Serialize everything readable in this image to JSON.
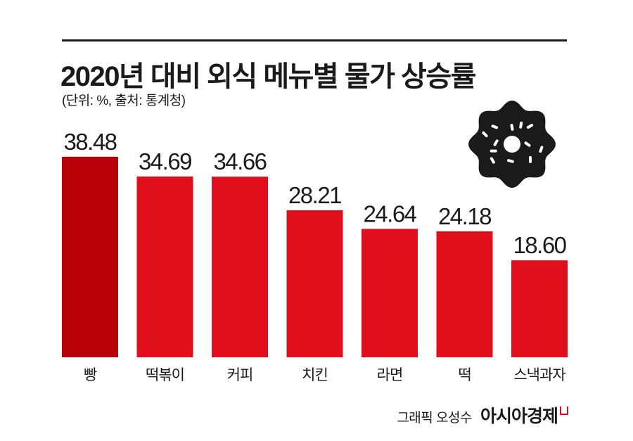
{
  "header": {
    "title": "2020년 대비 외식 메뉴별 물가 상승률",
    "subtitle": "(단위: %, 출처: 통계청)"
  },
  "footer": {
    "credit": "그래픽 오성수",
    "brand": "아시아경제"
  },
  "colors": {
    "highlight_bar": "#b70008",
    "bar": "#e00f1c",
    "donut": "#1a1a1a"
  },
  "decoration": {
    "icon": "donut-icon"
  },
  "chart_data": {
    "type": "bar",
    "title": "2020년 대비 외식 메뉴별 물가 상승률",
    "subtitle": "(단위: %, 출처: 통계청)",
    "categories": [
      "빵",
      "떡볶이",
      "커피",
      "치킨",
      "라면",
      "떡",
      "스낵과자"
    ],
    "values": [
      38.48,
      34.69,
      34.66,
      28.21,
      24.64,
      24.18,
      18.6
    ],
    "value_labels": [
      "38.48",
      "34.69",
      "34.66",
      "28.21",
      "24.64",
      "24.18",
      "18.60"
    ],
    "highlight_index": 0,
    "ylim": [
      0,
      40
    ],
    "grid": false,
    "legend": "none",
    "xlabel": "",
    "ylabel": ""
  }
}
